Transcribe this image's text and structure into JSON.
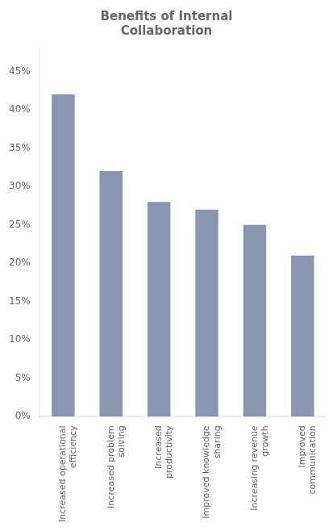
{
  "chart_data": {
    "type": "bar",
    "title": "Benefits of Internal\nCollaboration",
    "categories": [
      "Increased operational\nefficiency",
      "Increased problem\nsolving",
      "Increased\nproductivity",
      "Improved knowledge\nsharing",
      "Increasing revenue\ngrowth",
      "Improved\ncommunication"
    ],
    "values": [
      0.42,
      0.32,
      0.28,
      0.27,
      0.25,
      0.21
    ],
    "color": "#8896af",
    "ylim": [
      0,
      0.48
    ],
    "yticks": [
      {
        "value": 0.0,
        "label": "0%"
      },
      {
        "value": 0.05,
        "label": "5%"
      },
      {
        "value": 0.1,
        "label": "10%"
      },
      {
        "value": 0.15,
        "label": "15%"
      },
      {
        "value": 0.2,
        "label": "20%"
      },
      {
        "value": 0.25,
        "label": "25%"
      },
      {
        "value": 0.3,
        "label": "30%"
      },
      {
        "value": 0.35,
        "label": "35%"
      },
      {
        "value": 0.4,
        "label": "40%"
      },
      {
        "value": 0.45,
        "label": "45%"
      }
    ],
    "grid": false
  }
}
